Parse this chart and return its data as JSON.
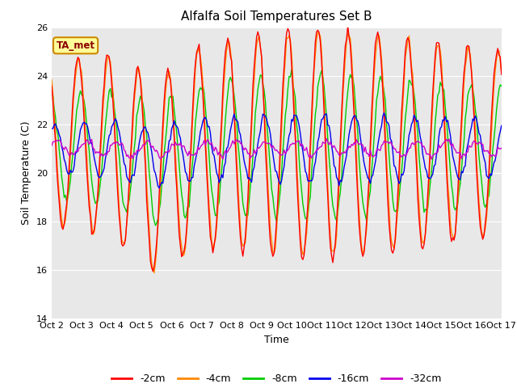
{
  "title": "Alfalfa Soil Temperatures Set B",
  "xlabel": "Time",
  "ylabel": "Soil Temperature (C)",
  "ylim": [
    14,
    26
  ],
  "xlim": [
    0,
    360
  ],
  "fig_bg_color": "#ffffff",
  "plot_bg_color": "#e8e8e8",
  "series_colors": {
    "-2cm": "#ff0000",
    "-4cm": "#ff8800",
    "-8cm": "#00cc00",
    "-16cm": "#0000ee",
    "-32cm": "#cc00cc"
  },
  "annotation_text": "TA_met",
  "annotation_bg": "#ffff99",
  "annotation_border": "#cc8800",
  "x_tick_labels": [
    "Oct 2",
    "Oct 3",
    "Oct 4",
    "Oct 5",
    "Oct 6",
    "Oct 7",
    "Oct 8",
    "Oct 9",
    "Oct 10",
    "Oct 11",
    "Oct 12",
    "Oct 13",
    "Oct 14",
    "Oct 15",
    "Oct 16",
    "Oct 17"
  ],
  "x_tick_positions": [
    0,
    24,
    48,
    72,
    96,
    120,
    144,
    168,
    192,
    216,
    240,
    264,
    288,
    312,
    336,
    360
  ],
  "yticks": [
    14,
    16,
    18,
    20,
    22,
    24,
    26
  ]
}
